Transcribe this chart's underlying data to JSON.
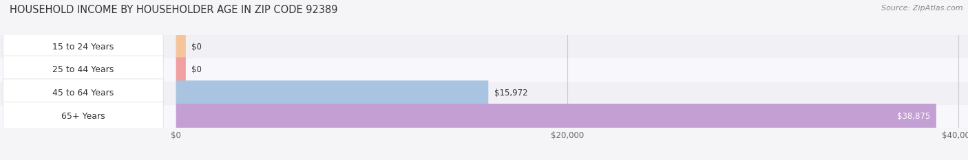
{
  "title": "HOUSEHOLD INCOME BY HOUSEHOLDER AGE IN ZIP CODE 92389",
  "source": "Source: ZipAtlas.com",
  "categories": [
    "15 to 24 Years",
    "25 to 44 Years",
    "45 to 64 Years",
    "65+ Years"
  ],
  "values": [
    0,
    0,
    15972,
    38875
  ],
  "bar_colors": [
    "#f5c49a",
    "#f0a0a0",
    "#a8c4e0",
    "#c49fd4"
  ],
  "label_bg_colors": [
    "#f5c49a",
    "#f0a0a0",
    "#a8c4e0",
    "#c49fd4"
  ],
  "row_colors": [
    "#f0f0f5",
    "#f8f8fc",
    "#f0f0f5",
    "#f8f8fc"
  ],
  "xlim_max": 40000,
  "xtick_labels": [
    "$0",
    "$20,000",
    "$40,000"
  ],
  "xtick_values": [
    0,
    20000,
    40000
  ],
  "background_color": "#f5f5f8",
  "title_fontsize": 10.5,
  "source_fontsize": 8,
  "label_fontsize": 9,
  "value_fontsize": 8.5,
  "bar_height": 0.62
}
